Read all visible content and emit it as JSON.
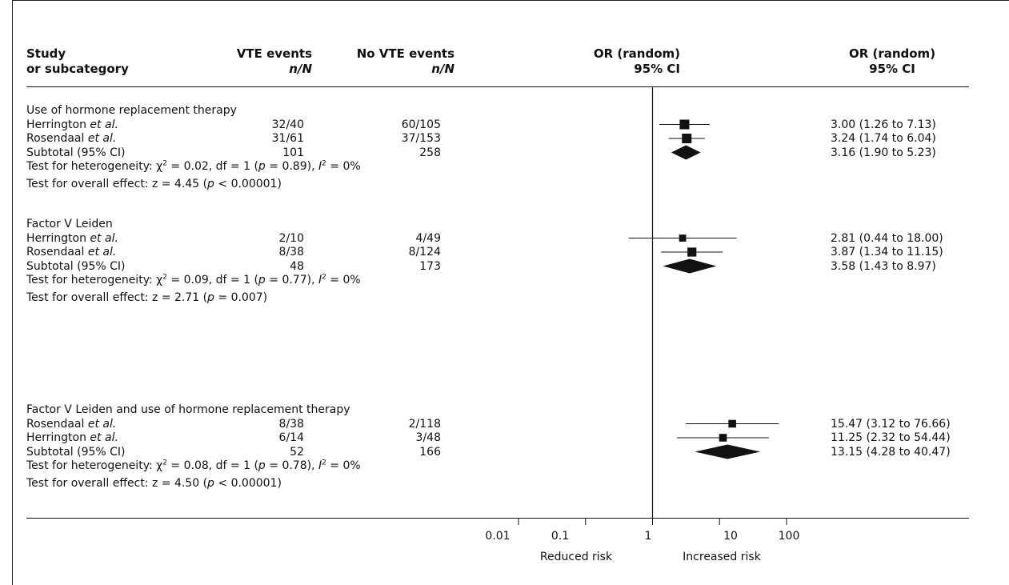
{
  "columns": {
    "study_line1": "Study",
    "study_line2": "or subcategory",
    "vte_line1": "VTE events",
    "vte_line2": "n/N",
    "novte_line1": "No VTE events",
    "novte_line2": "n/N",
    "or_line1": "OR (random)",
    "or_line2": "95% CI",
    "orci_line1": "OR (random)",
    "orci_line2": "95% CI"
  },
  "axis": {
    "ticks": [
      "0.01",
      "0.1",
      "1",
      "10",
      "100"
    ],
    "left_label": "Reduced risk",
    "right_label": "Increased risk"
  },
  "chart_data": {
    "type": "forest",
    "scale": "log",
    "xlim": [
      0.01,
      100
    ],
    "null_value": 1,
    "groups": [
      {
        "title": "Use of hormone replacement therapy",
        "studies": [
          {
            "name": "Herrington",
            "suffix": " et al.",
            "vte": "32/40",
            "novte": "60/105",
            "or": 3.0,
            "lo": 1.26,
            "hi": 7.13,
            "label": "3.00 (1.26 to 7.13)",
            "weight": 1.0
          },
          {
            "name": "Rosendaal",
            "suffix": " et al.",
            "vte": "31/61",
            "novte": "37/153",
            "or": 3.24,
            "lo": 1.74,
            "hi": 6.04,
            "label": "3.24 (1.74 to 6.04)",
            "weight": 1.0
          }
        ],
        "subtotal": {
          "name": "Subtotal (95% CI)",
          "vte": "101",
          "novte": "258",
          "or": 3.16,
          "lo": 1.9,
          "hi": 5.23,
          "label": "3.16 (1.90 to 5.23)"
        },
        "het": {
          "chi2": "0.02",
          "df": "1",
          "p": "0.89",
          "i2": "0%"
        },
        "overall": {
          "z": "4.45",
          "p": "< 0.00001"
        }
      },
      {
        "title": "Factor V Leiden",
        "studies": [
          {
            "name": "Herrington",
            "suffix": " et al.",
            "vte": "2/10",
            "novte": "4/49",
            "or": 2.81,
            "lo": 0.44,
            "hi": 18.0,
            "label": "2.81 (0.44 to 18.00)",
            "weight": 0.6
          },
          {
            "name": "Rosendaal",
            "suffix": " et al.",
            "vte": "8/38",
            "novte": "8/124",
            "or": 3.87,
            "lo": 1.34,
            "hi": 11.15,
            "label": "3.87 (1.34 to 11.15)",
            "weight": 0.9
          }
        ],
        "subtotal": {
          "name": "Subtotal (95% CI)",
          "vte": "48",
          "novte": "173",
          "or": 3.58,
          "lo": 1.43,
          "hi": 8.97,
          "label": "3.58 (1.43 to 8.97)"
        },
        "het": {
          "chi2": "0.09",
          "df": "1",
          "p": "0.77",
          "i2": "0%"
        },
        "overall": {
          "z": "2.71",
          "p": "= 0.007"
        }
      },
      {
        "title": "Factor V Leiden and use of hormone replacement therapy",
        "studies": [
          {
            "name": "Rosendaal",
            "suffix": " et al.",
            "vte": "8/38",
            "novte": "2/118",
            "or": 15.47,
            "lo": 3.12,
            "hi": 76.66,
            "label": "15.47 (3.12 to 76.66)",
            "weight": 0.7
          },
          {
            "name": "Herrington",
            "suffix": " et al.",
            "vte": "6/14",
            "novte": "3/48",
            "or": 11.25,
            "lo": 2.32,
            "hi": 54.44,
            "label": "11.25 (2.32 to 54.44)",
            "weight": 0.7
          }
        ],
        "subtotal": {
          "name": "Subtotal (95% CI)",
          "vte": "52",
          "novte": "166",
          "or": 13.15,
          "lo": 4.28,
          "hi": 40.47,
          "label": "13.15 (4.28 to 40.47)"
        },
        "het": {
          "chi2": "0.08",
          "df": "1",
          "p": "0.78",
          "i2": "0%"
        },
        "overall": {
          "z": "4.50",
          "p": "< 0.00001"
        }
      }
    ]
  }
}
